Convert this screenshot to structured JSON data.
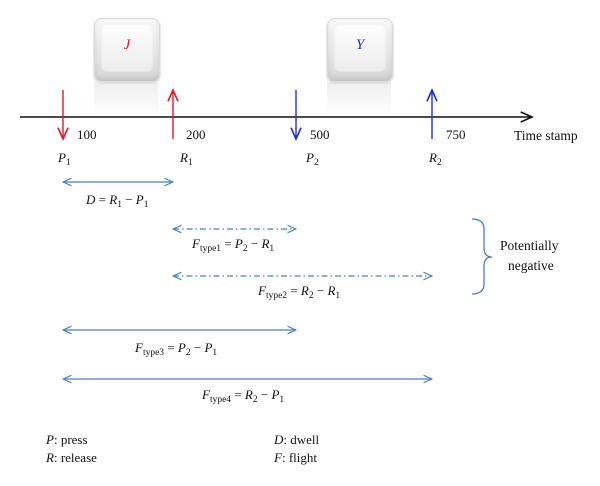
{
  "keys": [
    {
      "letter": "J",
      "color": "#e0192b"
    },
    {
      "letter": "Y",
      "color": "#1f2fd0"
    }
  ],
  "events": [
    {
      "symbol": "P",
      "sub": "1",
      "time": "100",
      "kind": "press",
      "color": "#e0192b"
    },
    {
      "symbol": "R",
      "sub": "1",
      "time": "200",
      "kind": "release",
      "color": "#e0192b"
    },
    {
      "symbol": "P",
      "sub": "2",
      "time": "500",
      "kind": "press",
      "color": "#1f2fd0"
    },
    {
      "symbol": "R",
      "sub": "2",
      "time": "750",
      "kind": "release",
      "color": "#1f2fd0"
    }
  ],
  "axis_label": "Time stamp",
  "intervals": {
    "dwell": {
      "lhs": "D",
      "rhs_a": "R",
      "rhs_a_sub": "1",
      "rhs_b": "P",
      "rhs_b_sub": "1"
    },
    "type1": {
      "lhs": "F",
      "lhs_sub": "type1",
      "rhs_a": "P",
      "rhs_a_sub": "2",
      "rhs_b": "R",
      "rhs_b_sub": "1"
    },
    "type2": {
      "lhs": "F",
      "lhs_sub": "type2",
      "rhs_a": "R",
      "rhs_a_sub": "2",
      "rhs_b": "R",
      "rhs_b_sub": "1"
    },
    "type3": {
      "lhs": "F",
      "lhs_sub": "type3",
      "rhs_a": "P",
      "rhs_a_sub": "2",
      "rhs_b": "P",
      "rhs_b_sub": "1"
    },
    "type4": {
      "lhs": "F",
      "lhs_sub": "type4",
      "rhs_a": "R",
      "rhs_a_sub": "2",
      "rhs_b": "P",
      "rhs_b_sub": "1"
    }
  },
  "note": {
    "line1": "Potentially",
    "line2": "negative"
  },
  "legend": [
    {
      "symbol": "P",
      "text": ": press"
    },
    {
      "symbol": "R",
      "text": ": release"
    },
    {
      "symbol": "D",
      "text": ": dwell"
    },
    {
      "symbol": "F",
      "text": ": flight"
    }
  ],
  "colors": {
    "interval": "#4a7fc0",
    "axis": "#111111"
  }
}
